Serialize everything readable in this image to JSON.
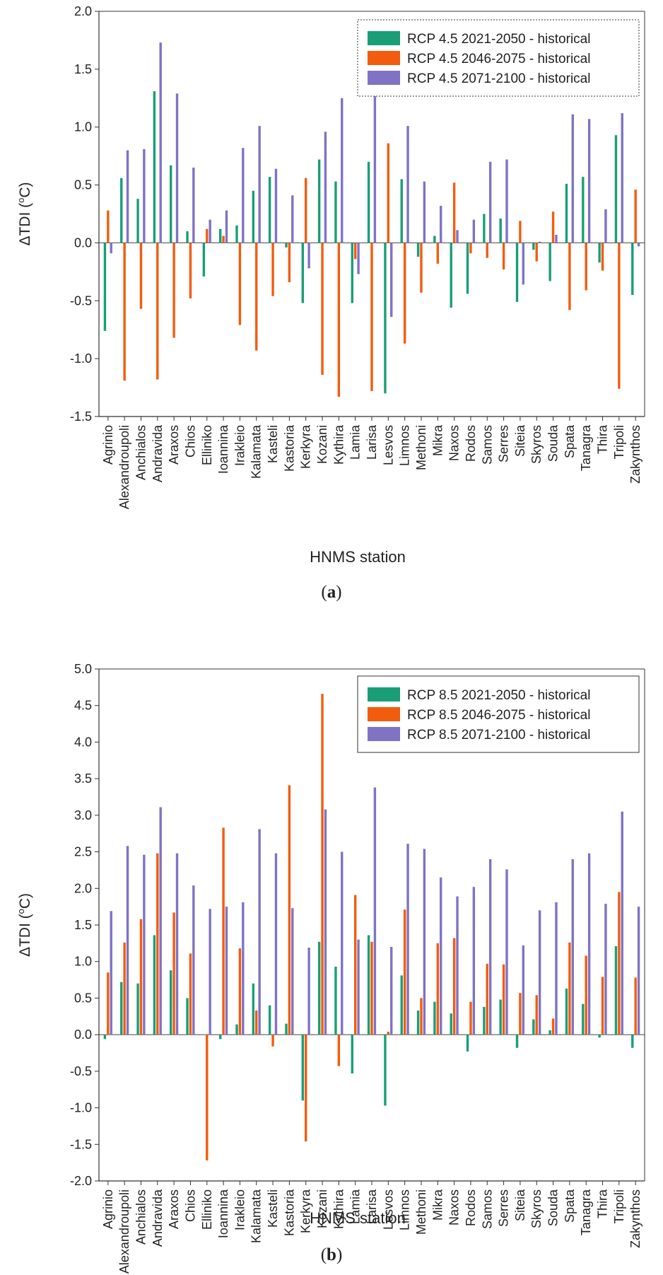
{
  "stations": [
    "Agrinio",
    "Alexandroupoli",
    "Anchialos",
    "Andravida",
    "Araxos",
    "Chios",
    "Elliniko",
    "Ioannina",
    "Irakleio",
    "Kalamata",
    "Kasteli",
    "Kastoria",
    "Kerkyra",
    "Kozani",
    "Kythira",
    "Lamia",
    "Larisa",
    "Lesvos",
    "Limnos",
    "Methoni",
    "Mikra",
    "Naxos",
    "Rodos",
    "Samos",
    "Serres",
    "Siteia",
    "Skyros",
    "Souda",
    "Spata",
    "Tanagra",
    "Thira",
    "Tripoli",
    "Zakynthos"
  ],
  "colors": {
    "green": "#1a9e77",
    "orange": "#f25c0e",
    "purple": "#7f73c4"
  },
  "chart_data": [
    {
      "id": "a",
      "type": "bar",
      "caption_prefix": "(",
      "caption_letter": "a",
      "caption_suffix": ")",
      "xlabel": "HNMS station",
      "ylabel_delta": "Δ",
      "ylabel_main": "TDI (",
      "ylabel_deg": "o",
      "ylabel_end": "C)",
      "ylim": [
        -1.5,
        2.0
      ],
      "yticks": [
        -1.5,
        -1.0,
        -0.5,
        0.0,
        0.5,
        1.0,
        1.5,
        2.0
      ],
      "ytick_labels": [
        "-1.5",
        "-1.0",
        "-0.5",
        "0.0",
        "0.5",
        "1.0",
        "1.5",
        "2.0"
      ],
      "legend_position": "top-right",
      "legend_style": "dotted",
      "series": [
        {
          "name": "RCP 4.5 2021-2050 - historical",
          "color": "#1a9e77",
          "values": [
            -0.76,
            0.56,
            0.38,
            1.31,
            0.67,
            0.1,
            -0.29,
            0.12,
            0.15,
            0.45,
            0.57,
            -0.04,
            -0.52,
            0.72,
            0.53,
            -0.52,
            0.7,
            -1.3,
            0.55,
            -0.12,
            0.06,
            -0.56,
            -0.44,
            0.25,
            0.21,
            -0.51,
            -0.06,
            -0.33,
            0.51,
            0.57,
            -0.17,
            0.93,
            -0.45
          ]
        },
        {
          "name": "RCP 4.5 2046-2075 - historical",
          "color": "#f25c0e",
          "values": [
            0.28,
            -1.19,
            -0.57,
            -1.18,
            -0.82,
            -0.48,
            0.12,
            0.06,
            -0.71,
            -0.93,
            -0.46,
            -0.34,
            0.56,
            -1.14,
            -1.33,
            -0.14,
            -1.28,
            0.86,
            -0.87,
            -0.43,
            -0.18,
            0.52,
            -0.09,
            -0.13,
            -0.23,
            0.19,
            -0.16,
            0.27,
            -0.58,
            -0.41,
            -0.24,
            -1.26,
            0.46
          ]
        },
        {
          "name": "RCP 4.5 2071-2100 - historical",
          "color": "#7f73c4",
          "values": [
            -0.09,
            0.8,
            0.81,
            1.73,
            1.29,
            0.65,
            0.2,
            0.28,
            0.82,
            1.01,
            0.64,
            0.41,
            -0.22,
            0.96,
            1.25,
            -0.27,
            1.36,
            -0.64,
            1.01,
            0.53,
            0.32,
            0.11,
            0.2,
            0.7,
            0.72,
            -0.36,
            0.01,
            0.07,
            1.11,
            1.07,
            0.29,
            1.12,
            -0.03
          ]
        }
      ]
    },
    {
      "id": "b",
      "type": "bar",
      "caption_prefix": "(",
      "caption_letter": "b",
      "caption_suffix": ")",
      "xlabel": "HNMS station",
      "ylabel_delta": "Δ",
      "ylabel_main": "TDI (",
      "ylabel_deg": "o",
      "ylabel_end": "C)",
      "ylim": [
        -2.0,
        5.0
      ],
      "yticks": [
        -2.0,
        -1.5,
        -1.0,
        -0.5,
        0.0,
        0.5,
        1.0,
        1.5,
        2.0,
        2.5,
        3.0,
        3.5,
        4.0,
        4.5,
        5.0
      ],
      "ytick_labels": [
        "-2.0",
        "-1.5",
        "-1.0",
        "-0.5",
        "0.0",
        "0.5",
        "1.0",
        "1.5",
        "2.0",
        "2.5",
        "3.0",
        "3.5",
        "4.0",
        "4.5",
        "5.0"
      ],
      "legend_position": "top-right",
      "legend_style": "solid",
      "series": [
        {
          "name": "RCP 8.5 2021-2050 - historical",
          "color": "#1a9e77",
          "values": [
            -0.06,
            0.72,
            0.7,
            1.36,
            0.88,
            0.5,
            0.0,
            -0.06,
            0.14,
            0.7,
            0.4,
            0.15,
            -0.9,
            1.27,
            0.93,
            -0.53,
            1.36,
            -0.97,
            0.81,
            0.33,
            0.45,
            0.29,
            -0.23,
            0.38,
            0.48,
            -0.18,
            0.21,
            0.06,
            0.63,
            0.42,
            -0.04,
            1.21,
            -0.18
          ]
        },
        {
          "name": "RCP 8.5 2046-2075 - historical",
          "color": "#f25c0e",
          "values": [
            0.85,
            1.26,
            1.58,
            2.48,
            1.67,
            1.11,
            -1.72,
            2.83,
            1.18,
            0.33,
            -0.16,
            3.41,
            -1.46,
            4.66,
            -0.43,
            1.91,
            1.27,
            0.04,
            1.71,
            0.5,
            1.25,
            1.32,
            0.45,
            0.97,
            0.96,
            0.57,
            0.54,
            0.22,
            1.26,
            1.08,
            0.79,
            1.95,
            0.78
          ]
        },
        {
          "name": "RCP 8.5 2071-2100 - historical",
          "color": "#7f73c4",
          "values": [
            1.69,
            2.58,
            2.46,
            3.11,
            2.48,
            2.04,
            1.72,
            1.75,
            1.81,
            2.81,
            2.48,
            1.73,
            1.19,
            3.08,
            2.5,
            1.3,
            3.38,
            1.2,
            2.61,
            2.54,
            2.15,
            1.89,
            2.02,
            2.4,
            2.26,
            1.22,
            1.7,
            1.81,
            2.4,
            2.48,
            1.79,
            3.05,
            1.75
          ]
        }
      ]
    }
  ]
}
